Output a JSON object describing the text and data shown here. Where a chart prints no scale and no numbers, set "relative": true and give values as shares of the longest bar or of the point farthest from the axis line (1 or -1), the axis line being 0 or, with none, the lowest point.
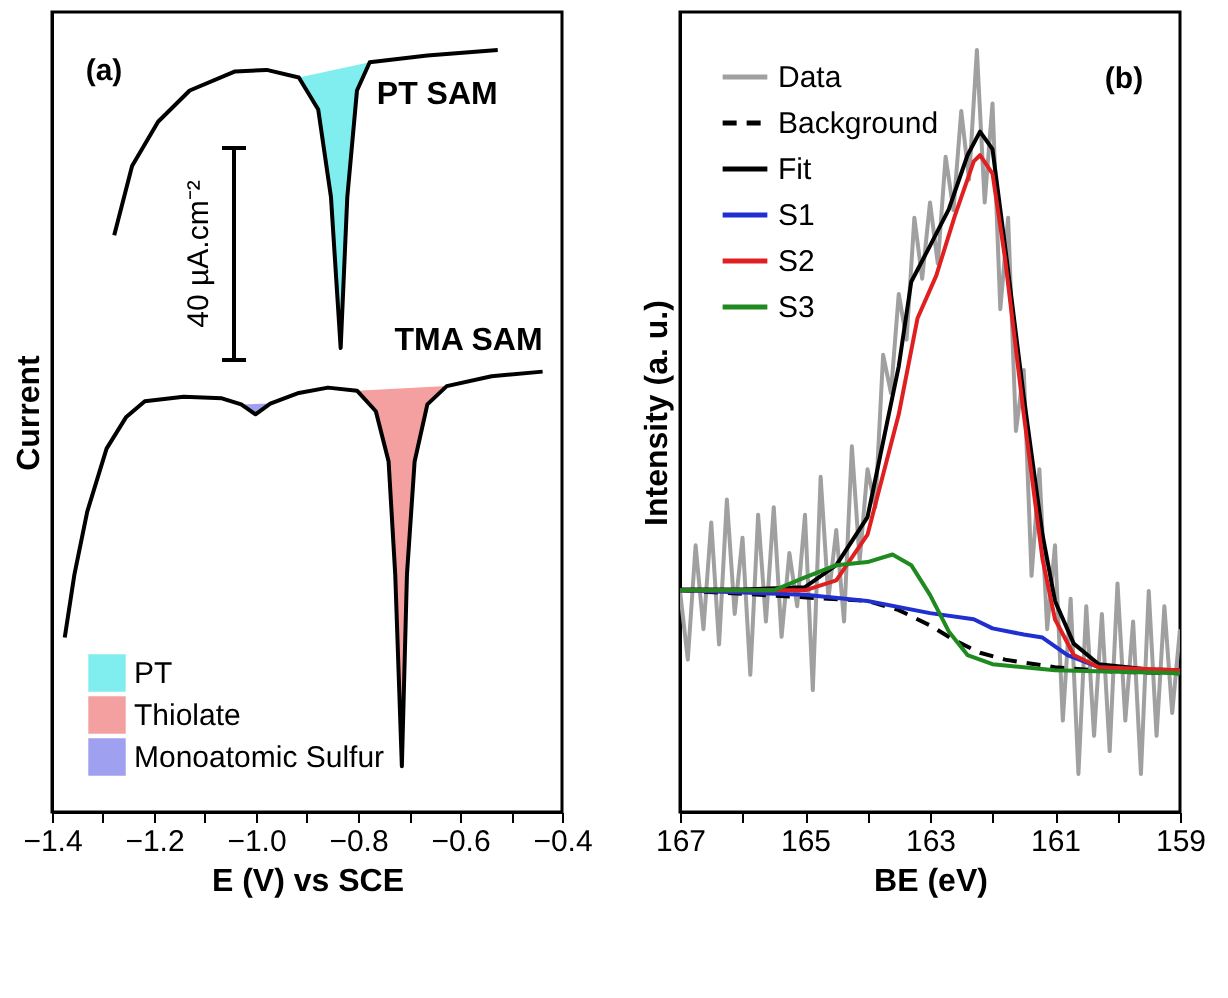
{
  "chart_data": [
    {
      "type": "line",
      "relative": true,
      "xlabel": "E (V) vs SCE",
      "ylabel": "Current",
      "xlim": [
        -1.4,
        -0.4
      ],
      "xticks": [
        {
          "value": -1.4,
          "label": "−1.4"
        },
        {
          "value": -1.3,
          "label": null
        },
        {
          "value": -1.2,
          "label": "−1.2"
        },
        {
          "value": -1.1,
          "label": null
        },
        {
          "value": -1.0,
          "label": "−1.0"
        },
        {
          "value": -0.9,
          "label": null
        },
        {
          "value": -0.8,
          "label": "−0.8"
        },
        {
          "value": -0.7,
          "label": null
        },
        {
          "value": -0.6,
          "label": "−0.6"
        },
        {
          "value": -0.5,
          "label": null
        },
        {
          "value": -0.4,
          "label": "−0.4"
        }
      ],
      "grid": false,
      "legend": "bottom left",
      "annotations": [
        "(a)",
        "40 µA.cm⁻²"
      ],
      "series": [
        {
          "name": "PT SAM",
          "color": "#000000",
          "x": [
            -1.278,
            -1.243,
            -1.192,
            -1.13,
            -1.041,
            -0.979,
            -0.916,
            -0.878,
            -0.853,
            -0.834,
            -0.821,
            -0.802,
            -0.777,
            -0.664,
            -0.526
          ],
          "values": [
            0.757,
            0.848,
            0.906,
            0.947,
            0.972,
            0.974,
            0.964,
            0.922,
            0.807,
            0.609,
            0.807,
            0.947,
            0.984,
            0.993,
            1.0
          ]
        },
        {
          "name": "TMA SAM",
          "color": "#000000",
          "x": [
            -1.375,
            -1.356,
            -1.331,
            -1.293,
            -1.255,
            -1.218,
            -1.142,
            -1.067,
            -1.029,
            -1.001,
            -0.972,
            -0.916,
            -0.859,
            -0.802,
            -0.765,
            -0.74,
            -0.727,
            -0.714,
            -0.704,
            -0.689,
            -0.664,
            -0.626,
            -0.538,
            -0.438
          ],
          "values": [
            0.229,
            0.312,
            0.394,
            0.477,
            0.518,
            0.539,
            0.545,
            0.543,
            0.535,
            0.522,
            0.536,
            0.55,
            0.557,
            0.553,
            0.526,
            0.46,
            0.312,
            0.06,
            0.312,
            0.46,
            0.535,
            0.559,
            0.572,
            0.578
          ]
        },
        {
          "name": "PT",
          "type": "area",
          "color": "#80eeee",
          "x": [
            -0.916,
            -0.878,
            -0.853,
            -0.834,
            -0.821,
            -0.802,
            -0.777
          ],
          "values": [
            0.964,
            0.922,
            0.807,
            0.609,
            0.807,
            0.947,
            0.984
          ]
        },
        {
          "name": "Thiolate",
          "type": "area",
          "color": "#f4a0a0",
          "x": [
            -0.802,
            -0.765,
            -0.74,
            -0.727,
            -0.714,
            -0.704,
            -0.689,
            -0.664,
            -0.626
          ],
          "values": [
            0.553,
            0.526,
            0.46,
            0.312,
            0.06,
            0.312,
            0.46,
            0.535,
            0.559
          ]
        },
        {
          "name": "Monoatomic Sulfur",
          "type": "area",
          "color": "#a0a0f0",
          "x": [
            -1.029,
            -1.001,
            -0.972
          ],
          "values": [
            0.535,
            0.522,
            0.536
          ]
        }
      ]
    },
    {
      "type": "line",
      "relative": true,
      "xlabel": "BE (eV)",
      "ylabel": "Intensity (a. u.)",
      "xlim": [
        167,
        159
      ],
      "xticks": [
        167,
        {
          "value": 166,
          "label": null
        },
        165,
        {
          "value": 164,
          "label": null
        },
        163,
        {
          "value": 162,
          "label": null
        },
        161,
        {
          "value": 160,
          "label": null
        },
        159
      ],
      "grid": false,
      "legend": "top left",
      "annotations": [
        "(b)"
      ],
      "series": [
        {
          "name": "Data",
          "color": "#a0a0a0",
          "x": [
            167,
            166.875,
            166.75,
            166.625,
            166.5,
            166.375,
            166.25,
            166.125,
            166,
            165.875,
            165.75,
            165.625,
            165.5,
            165.375,
            165.25,
            165.125,
            165,
            164.875,
            164.75,
            164.625,
            164.5,
            164.375,
            164.25,
            164.125,
            164,
            163.875,
            163.75,
            163.625,
            163.5,
            163.375,
            163.25,
            163.125,
            163,
            162.875,
            162.75,
            162.625,
            162.5,
            162.375,
            162.25,
            162.125,
            162,
            161.875,
            161.75,
            161.625,
            161.5,
            161.375,
            161.25,
            161.125,
            161,
            160.875,
            160.75,
            160.625,
            160.5,
            160.375,
            160.25,
            160.125,
            160,
            159.875,
            159.75,
            159.625,
            159.5,
            159.375,
            159.25,
            159.125,
            159
          ],
          "values": [
            0.29,
            0.2,
            0.35,
            0.24,
            0.38,
            0.22,
            0.41,
            0.26,
            0.36,
            0.18,
            0.39,
            0.25,
            0.4,
            0.23,
            0.34,
            0.27,
            0.39,
            0.16,
            0.44,
            0.28,
            0.37,
            0.25,
            0.48,
            0.33,
            0.45,
            0.4,
            0.6,
            0.55,
            0.68,
            0.62,
            0.78,
            0.7,
            0.8,
            0.72,
            0.86,
            0.79,
            0.92,
            0.83,
            1.0,
            0.8,
            0.93,
            0.66,
            0.78,
            0.5,
            0.58,
            0.31,
            0.45,
            0.24,
            0.35,
            0.12,
            0.28,
            0.05,
            0.27,
            0.1,
            0.26,
            0.08,
            0.3,
            0.12,
            0.25,
            0.05,
            0.29,
            0.1,
            0.27,
            0.13,
            0.24
          ]
        },
        {
          "name": "Background",
          "color": "#000000",
          "line_style": "dashed",
          "x": [
            167,
            164,
            163.5,
            163,
            162.6,
            162.2,
            161.8,
            161,
            160,
            159
          ],
          "values": [
            0.291,
            0.277,
            0.265,
            0.245,
            0.225,
            0.209,
            0.2,
            0.19,
            0.184,
            0.182
          ]
        },
        {
          "name": "Fit",
          "color": "#000000",
          "x": [
            167,
            166,
            165,
            164.5,
            164,
            163.5,
            163.3,
            163,
            162.7,
            162.4,
            162.2,
            162,
            161.8,
            161.5,
            161.2,
            161,
            160.7,
            160.3,
            159.5,
            159
          ],
          "values": [
            0.292,
            0.292,
            0.295,
            0.324,
            0.387,
            0.585,
            0.696,
            0.743,
            0.791,
            0.862,
            0.893,
            0.87,
            0.743,
            0.545,
            0.364,
            0.277,
            0.221,
            0.194,
            0.187,
            0.186
          ]
        },
        {
          "name": "S1",
          "color": "#1f2fd0",
          "x": [
            167,
            165,
            164,
            163,
            162.3,
            162,
            161.5,
            161.2,
            160.8,
            160.3,
            159
          ],
          "values": [
            0.291,
            0.285,
            0.277,
            0.261,
            0.253,
            0.241,
            0.233,
            0.229,
            0.206,
            0.19,
            0.182
          ]
        },
        {
          "name": "S2",
          "color": "#e02020",
          "x": [
            167,
            165,
            164.5,
            164,
            163.5,
            163.2,
            162.9,
            162.6,
            162.3,
            162.2,
            162,
            161.8,
            161.5,
            161.2,
            161,
            160.7,
            160.3,
            159
          ],
          "values": [
            0.291,
            0.291,
            0.304,
            0.364,
            0.522,
            0.648,
            0.704,
            0.783,
            0.854,
            0.862,
            0.838,
            0.727,
            0.522,
            0.332,
            0.253,
            0.206,
            0.19,
            0.186
          ]
        },
        {
          "name": "S3",
          "color": "#1f8a1f",
          "x": [
            167,
            165.5,
            165,
            164.5,
            164,
            163.6,
            163.3,
            163,
            162.7,
            162.4,
            162,
            161,
            159
          ],
          "values": [
            0.291,
            0.291,
            0.308,
            0.324,
            0.328,
            0.338,
            0.324,
            0.285,
            0.237,
            0.206,
            0.194,
            0.186,
            0.182
          ]
        }
      ]
    }
  ]
}
